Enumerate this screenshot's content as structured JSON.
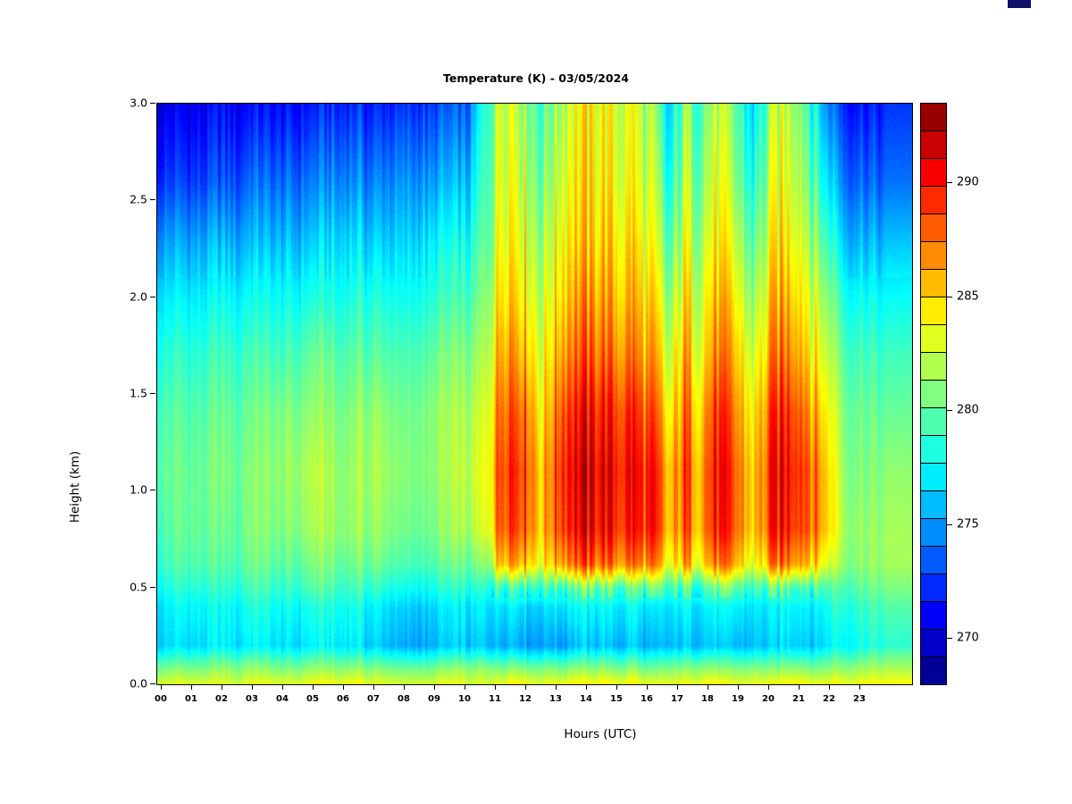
{
  "page": {
    "background": "#ffffff"
  },
  "chart_data": {
    "type": "heatmap",
    "title": "Temperature (K) - 03/05/2024",
    "xlabel": "Hours (UTC)",
    "ylabel": "Height (km)",
    "xlim": [
      0,
      24
    ],
    "ylim": [
      0,
      3
    ],
    "grid": false,
    "legend_position": "right-colorbar",
    "colormap": "jet",
    "x_ticks": [
      "00",
      "01",
      "02",
      "03",
      "04",
      "05",
      "06",
      "07",
      "08",
      "09",
      "10",
      "11",
      "12",
      "13",
      "14",
      "15",
      "16",
      "17",
      "18",
      "19",
      "20",
      "21",
      "22",
      "23"
    ],
    "y_ticks": [
      "0.0",
      "0.5",
      "1.0",
      "1.5",
      "2.0",
      "2.5",
      "3.0"
    ],
    "colorbar": {
      "ticks": [
        270,
        275,
        280,
        285,
        290
      ],
      "vmin": 268,
      "vmax": 293.5,
      "segments": 21
    },
    "x_hours": [
      0,
      1,
      2,
      3,
      4,
      5,
      6,
      7,
      8,
      9,
      10,
      10.7,
      11.2,
      12,
      12.5,
      13.2,
      14,
      14.8,
      15.5,
      16.2,
      16.7,
      17.2,
      17.7,
      18.3,
      18.9,
      19.5,
      20.2,
      20.9,
      21.4,
      21.9,
      22.5,
      23.3,
      23.9
    ],
    "heights_km": [
      0.0,
      0.08,
      0.2,
      0.4,
      0.5,
      0.62,
      0.8,
      1.1,
      1.4,
      1.7,
      2.0,
      2.3,
      2.6,
      3.0
    ],
    "values_K": [
      [
        283.0,
        280.5,
        276.5,
        277.0,
        278.0,
        279.0,
        279.5,
        280.0,
        279.5,
        278.5,
        277.0,
        275.0,
        272.5,
        270.5
      ],
      [
        283.0,
        280.5,
        276.5,
        277.5,
        278.5,
        279.5,
        280.0,
        280.0,
        279.5,
        278.5,
        277.0,
        275.0,
        272.5,
        270.5
      ],
      [
        283.0,
        281.0,
        277.0,
        277.5,
        278.5,
        279.5,
        280.0,
        280.5,
        280.0,
        279.0,
        277.5,
        275.5,
        273.0,
        271.0
      ],
      [
        283.0,
        281.0,
        277.0,
        278.0,
        279.0,
        280.0,
        280.5,
        280.5,
        280.0,
        279.0,
        277.5,
        275.5,
        273.5,
        271.0
      ],
      [
        283.5,
        281.0,
        277.0,
        278.0,
        279.0,
        280.0,
        281.0,
        281.5,
        281.0,
        279.5,
        278.0,
        276.0,
        274.0,
        271.5
      ],
      [
        283.5,
        281.0,
        277.0,
        278.0,
        279.5,
        280.5,
        281.5,
        282.0,
        281.0,
        280.0,
        278.0,
        276.0,
        274.0,
        271.5
      ],
      [
        283.5,
        281.0,
        277.0,
        278.0,
        279.0,
        280.0,
        281.0,
        281.0,
        280.5,
        279.5,
        278.0,
        276.5,
        274.5,
        272.0
      ],
      [
        283.5,
        281.0,
        276.5,
        277.5,
        279.0,
        280.5,
        281.5,
        282.0,
        281.5,
        280.0,
        278.5,
        276.5,
        274.5,
        272.0
      ],
      [
        283.0,
        280.5,
        275.5,
        276.5,
        278.0,
        279.5,
        280.5,
        281.0,
        280.5,
        279.5,
        278.0,
        276.5,
        275.0,
        272.5
      ],
      [
        283.0,
        280.5,
        275.5,
        276.5,
        278.0,
        279.5,
        280.5,
        281.0,
        281.0,
        280.0,
        278.5,
        277.0,
        275.0,
        272.5
      ],
      [
        283.0,
        281.0,
        276.0,
        277.0,
        278.5,
        280.0,
        281.5,
        282.0,
        281.5,
        280.5,
        279.0,
        277.5,
        275.5,
        273.0
      ],
      [
        283.0,
        281.0,
        276.0,
        277.0,
        278.5,
        281.0,
        283.0,
        283.5,
        283.0,
        282.0,
        281.0,
        280.0,
        279.5,
        279.0
      ],
      [
        284.0,
        281.0,
        276.0,
        277.5,
        280.0,
        287.0,
        289.5,
        290.0,
        289.0,
        287.5,
        286.0,
        285.0,
        284.5,
        284.0
      ],
      [
        284.0,
        281.0,
        275.5,
        277.0,
        280.0,
        286.5,
        289.0,
        289.5,
        288.5,
        286.5,
        285.0,
        284.0,
        283.0,
        282.0
      ],
      [
        283.5,
        281.0,
        275.5,
        277.0,
        279.5,
        284.0,
        285.5,
        285.5,
        284.5,
        283.5,
        282.5,
        281.5,
        280.5,
        279.5
      ],
      [
        284.0,
        281.0,
        275.5,
        277.5,
        280.0,
        287.5,
        290.0,
        290.5,
        289.5,
        287.5,
        286.0,
        285.0,
        284.0,
        283.0
      ],
      [
        284.0,
        281.0,
        276.0,
        277.5,
        280.5,
        288.0,
        290.5,
        291.0,
        290.0,
        288.0,
        286.5,
        285.0,
        284.5,
        284.0
      ],
      [
        284.0,
        281.0,
        276.0,
        277.5,
        280.0,
        287.5,
        290.0,
        290.5,
        289.5,
        287.5,
        286.0,
        285.0,
        284.0,
        283.5
      ],
      [
        284.0,
        281.0,
        276.0,
        277.5,
        280.0,
        287.0,
        289.5,
        290.0,
        289.0,
        287.0,
        285.5,
        284.5,
        283.5,
        283.0
      ],
      [
        283.5,
        280.5,
        275.5,
        277.0,
        280.0,
        287.0,
        289.5,
        289.5,
        288.0,
        286.0,
        284.5,
        283.0,
        282.0,
        281.0
      ],
      [
        283.0,
        280.5,
        275.5,
        276.5,
        278.5,
        282.5,
        284.5,
        284.5,
        283.0,
        281.5,
        280.0,
        278.5,
        277.0,
        275.5
      ],
      [
        283.5,
        281.0,
        276.0,
        277.5,
        279.5,
        286.0,
        288.0,
        288.5,
        287.5,
        286.0,
        284.5,
        283.0,
        282.0,
        281.0
      ],
      [
        283.5,
        281.0,
        276.0,
        277.0,
        279.5,
        284.5,
        286.5,
        286.5,
        285.5,
        284.0,
        283.0,
        282.0,
        281.0,
        280.0
      ],
      [
        284.0,
        281.0,
        276.0,
        277.5,
        280.0,
        287.0,
        289.5,
        290.0,
        289.0,
        287.0,
        285.5,
        284.0,
        283.0,
        282.0
      ],
      [
        283.5,
        281.0,
        276.0,
        277.5,
        280.0,
        286.0,
        288.0,
        288.0,
        287.0,
        285.5,
        284.0,
        282.5,
        281.0,
        280.0
      ],
      [
        283.5,
        281.0,
        276.0,
        277.0,
        279.0,
        283.0,
        285.0,
        285.0,
        284.0,
        282.5,
        281.0,
        279.5,
        278.0,
        276.5
      ],
      [
        284.0,
        281.0,
        276.5,
        277.5,
        280.0,
        287.5,
        290.0,
        290.5,
        289.5,
        287.5,
        286.0,
        284.5,
        283.5,
        282.5
      ],
      [
        284.0,
        281.0,
        276.5,
        277.5,
        280.0,
        287.0,
        289.5,
        290.0,
        289.0,
        287.0,
        285.5,
        284.0,
        283.0,
        282.0
      ],
      [
        284.0,
        281.0,
        276.5,
        277.5,
        280.0,
        286.0,
        288.5,
        288.5,
        287.0,
        285.0,
        283.5,
        282.0,
        280.5,
        279.0
      ],
      [
        283.5,
        281.0,
        277.0,
        278.0,
        279.5,
        283.0,
        285.0,
        285.0,
        284.0,
        282.5,
        281.0,
        279.0,
        277.0,
        274.5
      ],
      [
        283.5,
        281.0,
        277.5,
        278.5,
        279.5,
        281.0,
        281.5,
        281.0,
        280.5,
        279.5,
        278.0,
        276.0,
        274.0,
        272.0
      ],
      [
        283.5,
        281.5,
        278.0,
        279.0,
        280.0,
        281.0,
        281.0,
        280.5,
        280.0,
        279.0,
        277.5,
        275.5,
        273.5,
        271.5
      ],
      [
        283.5,
        281.5,
        278.0,
        279.0,
        280.0,
        281.0,
        281.0,
        280.5,
        279.5,
        278.5,
        277.0,
        275.0,
        273.0,
        271.5
      ]
    ]
  }
}
